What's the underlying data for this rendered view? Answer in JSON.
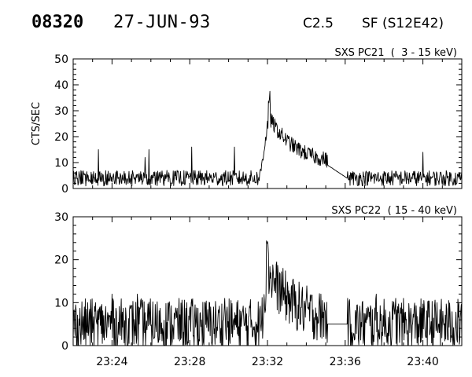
{
  "header": {
    "event_id": "08320",
    "date": "27-JUN-93",
    "goes_class": "C2.5",
    "flare_location": "SF (S12E42)"
  },
  "colors": {
    "trace": "#000000",
    "background": "#ffffff"
  },
  "x_axis": {
    "start": "23:22",
    "end": "23:42",
    "ticks": [
      "23:24",
      "23:28",
      "23:32",
      "23:36",
      "23:40"
    ]
  },
  "chart_data": [
    {
      "type": "line",
      "title": "SXS PC21  (  3 - 15 keV)",
      "ylabel": "CTS/SEC",
      "ylim": [
        0,
        50
      ],
      "yticks": [
        0,
        10,
        20,
        30,
        40,
        50
      ],
      "x_start": "23:22",
      "x_end": "23:42",
      "samples_per_minute": 40,
      "series": [
        {
          "values": []
        }
      ],
      "note_data": {
        "baseline": 4,
        "baseline_noise": 3,
        "flare_start": "23:31.6",
        "flare_peak": "23:32.1",
        "peak_value": 39,
        "decay_end": "23:35.1",
        "decay_end_value": 9,
        "data_gap": [
          "23:35.1",
          "23:36.1"
        ],
        "gap_linear_from": 9,
        "gap_linear_to": 4,
        "spikes": [
          [
            "23:23.3",
            15
          ],
          [
            "23:25.7",
            12
          ],
          [
            "23:25.9",
            15
          ],
          [
            "23:28.1",
            16
          ],
          [
            "23:30.3",
            16
          ],
          [
            "23:40.0",
            14
          ]
        ]
      }
    },
    {
      "type": "line",
      "title": "SXS PC22  ( 15 - 40 keV)",
      "ylabel": "",
      "ylim": [
        0,
        30
      ],
      "yticks": [
        0,
        10,
        20,
        30
      ],
      "x_start": "23:22",
      "x_end": "23:42",
      "samples_per_minute": 40,
      "series": [
        {
          "values": []
        }
      ],
      "note_data": {
        "baseline": 5,
        "baseline_noise": 6,
        "flare_start": "23:31.7",
        "flare_peak": "23:32.0",
        "peak_value": 25,
        "decay_end": "23:35.1",
        "decay_end_value": 5,
        "data_gap": [
          "23:35.1",
          "23:36.1"
        ],
        "gap_linear_from": 5,
        "gap_linear_to": 5,
        "spikes": [
          [
            "23:24.0",
            12
          ],
          [
            "23:25.3",
            12
          ],
          [
            "23:29.8",
            11
          ],
          [
            "23:37.6",
            12
          ],
          [
            "23:38.6",
            11
          ]
        ]
      }
    }
  ]
}
